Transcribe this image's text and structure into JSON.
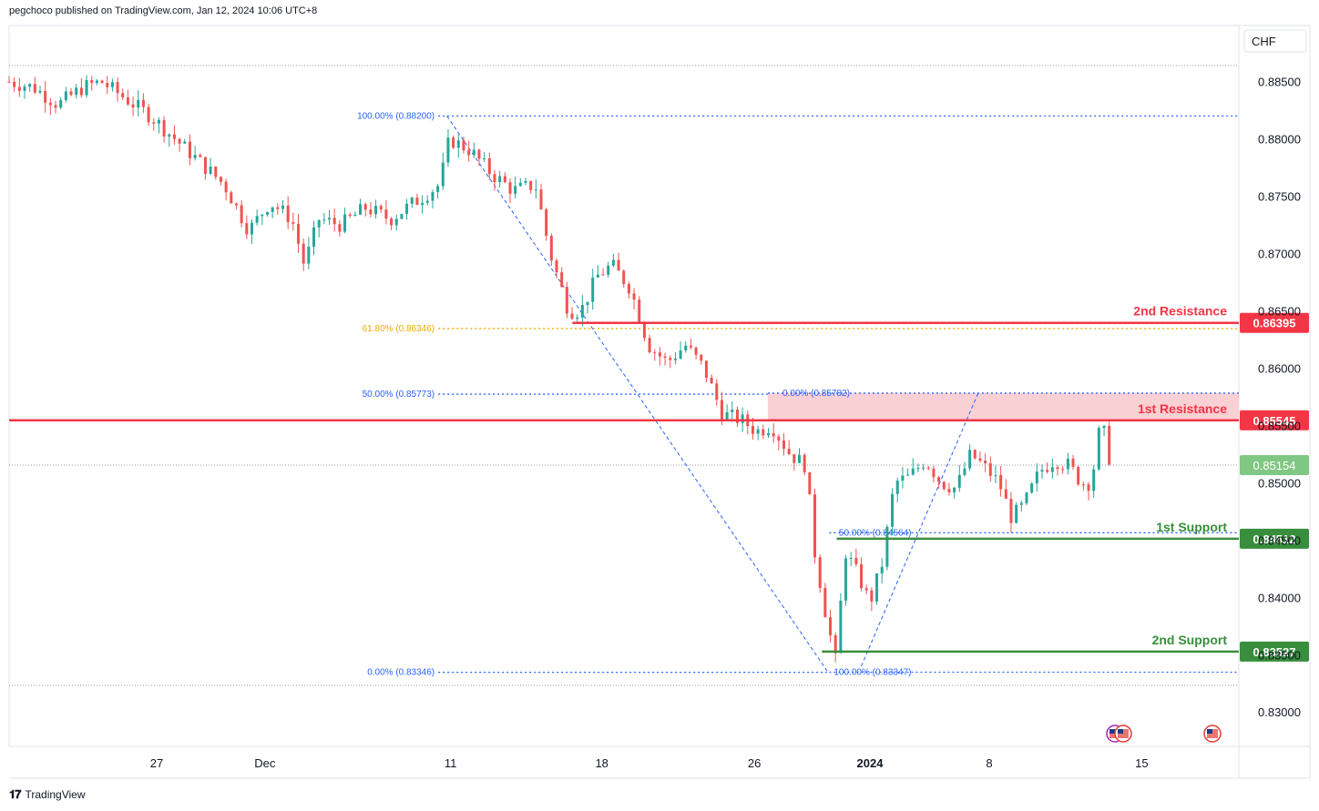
{
  "header": {
    "publish_text": "pegchoco published on TradingView.com, Jan 12, 2024 10:06 UTC+8"
  },
  "footer": {
    "brand": "TradingView",
    "logo_icon": "tradingview-logo-icon"
  },
  "colors": {
    "up": "#26a69a",
    "down": "#ef5350",
    "resistance": "#f23645",
    "support": "#388e3c",
    "fib_blue": "#2962ff",
    "fib_gold": "#f2a900",
    "zone_fill": "#f8c8cc",
    "last_price_badge": "#81c784"
  },
  "chart_data": {
    "type": "candlestick",
    "currency": "CHF",
    "ylim": [
      0.827,
      0.8899
    ],
    "y_ticks": [
      "0.88500",
      "0.88000",
      "0.87500",
      "0.87000",
      "0.86500",
      "0.86000",
      "0.85500",
      "0.85000",
      "0.84500",
      "0.84000",
      "0.83500",
      "0.83000"
    ],
    "x_ticks": [
      {
        "label": "27",
        "pos": 0.12,
        "bold": false
      },
      {
        "label": "Dec",
        "pos": 0.208,
        "bold": false
      },
      {
        "label": "11",
        "pos": 0.359,
        "bold": false
      },
      {
        "label": "18",
        "pos": 0.482,
        "bold": false
      },
      {
        "label": "26",
        "pos": 0.606,
        "bold": false
      },
      {
        "label": "2024",
        "pos": 0.7,
        "bold": true
      },
      {
        "label": "8",
        "pos": 0.797,
        "bold": false
      },
      {
        "label": "15",
        "pos": 0.921,
        "bold": false
      }
    ],
    "last_price": "0.85154",
    "levels": [
      {
        "name": "2nd Resistance",
        "value": 0.86395,
        "label": "0.86395",
        "kind": "resistance",
        "start": 0.458
      },
      {
        "name": "1st Resistance",
        "value": 0.85545,
        "label": "0.85545",
        "kind": "resistance",
        "start": 0.0
      },
      {
        "name": "1st Support",
        "value": 0.84512,
        "label": "0.84512",
        "kind": "support",
        "start": 0.673
      },
      {
        "name": "2nd Support",
        "value": 0.83527,
        "label": "0.83527",
        "kind": "support",
        "start": 0.661
      }
    ],
    "zone": {
      "top": 0.85782,
      "bottom": 0.85545,
      "start": 0.617,
      "end": 1.0
    },
    "fib_lines": [
      {
        "label": "100.00% (0.88200)",
        "value": 0.882,
        "start": 0.349,
        "end": 1.0,
        "color": "blue",
        "label_side": "left"
      },
      {
        "label": "61.80% (0.86346)",
        "value": 0.86346,
        "start": 0.349,
        "end": 1.0,
        "color": "gold",
        "label_side": "left"
      },
      {
        "label": "50.00% (0.85773)",
        "value": 0.85773,
        "start": 0.349,
        "end": 0.617,
        "color": "blue",
        "label_side": "left"
      },
      {
        "label": "0.00% (0.85782)",
        "value": 0.85782,
        "start": 0.617,
        "end": 1.0,
        "color": "blue",
        "label_side": "right"
      },
      {
        "label": "0.00% (0.83346)",
        "value": 0.83346,
        "start": 0.349,
        "end": 0.665,
        "color": "blue",
        "label_side": "left"
      },
      {
        "label": "50.00% (0.84564)",
        "value": 0.84564,
        "start": 0.667,
        "end": 1.0,
        "color": "blue",
        "label_side": "right"
      },
      {
        "label": "100.00% (0.83347)",
        "value": 0.83347,
        "start": 0.667,
        "end": 1.0,
        "color": "blue",
        "label_side": "right"
      }
    ],
    "trend_lines": [
      {
        "from": [
          0.356,
          0.882
        ],
        "to": [
          0.666,
          0.83346
        ]
      },
      {
        "from": [
          0.693,
          0.834
        ],
        "to": [
          0.788,
          0.85782
        ]
      }
    ],
    "candles_note": "Daily-ish candles, estimated OHLC from the chart",
    "candles": []
  }
}
